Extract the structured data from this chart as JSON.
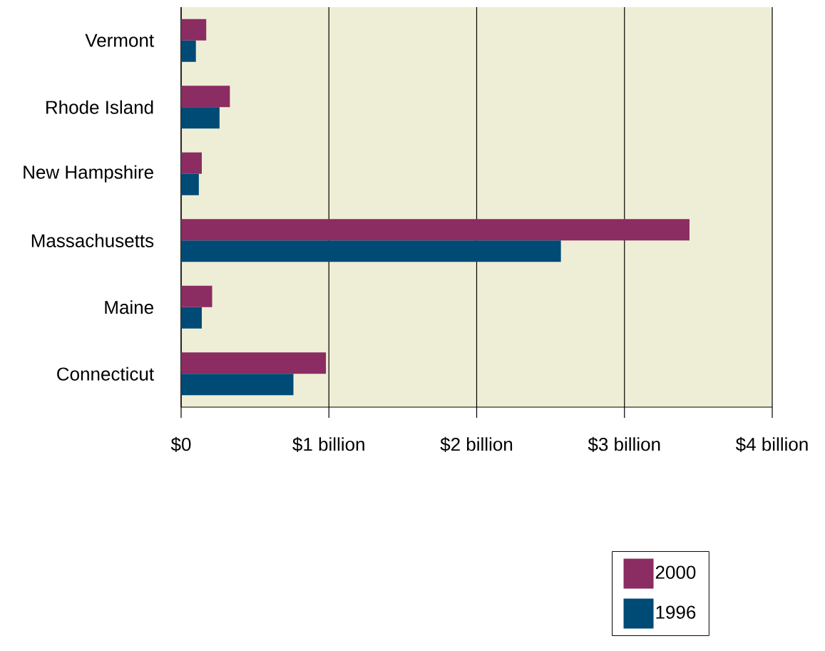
{
  "chart_data": {
    "type": "bar",
    "orientation": "horizontal",
    "categories": [
      "Vermont",
      "Rhode Island",
      "New Hampshire",
      "Massachusetts",
      "Maine",
      "Connecticut"
    ],
    "series": [
      {
        "name": "2000",
        "color": "#8b2c62",
        "values": [
          0.17,
          0.33,
          0.14,
          3.44,
          0.21,
          0.98
        ]
      },
      {
        "name": "1996",
        "color": "#004a76",
        "values": [
          0.1,
          0.26,
          0.12,
          2.57,
          0.14,
          0.76
        ]
      }
    ],
    "xlim": [
      0,
      4
    ],
    "xticks": [
      {
        "value": 0,
        "label": "$0"
      },
      {
        "value": 1,
        "label": "$1 billion"
      },
      {
        "value": 2,
        "label": "$2 billion"
      },
      {
        "value": 3,
        "label": "$3 billion"
      },
      {
        "value": 4,
        "label": "$4 billion"
      }
    ],
    "grid": "x",
    "legend": "bottom right"
  }
}
